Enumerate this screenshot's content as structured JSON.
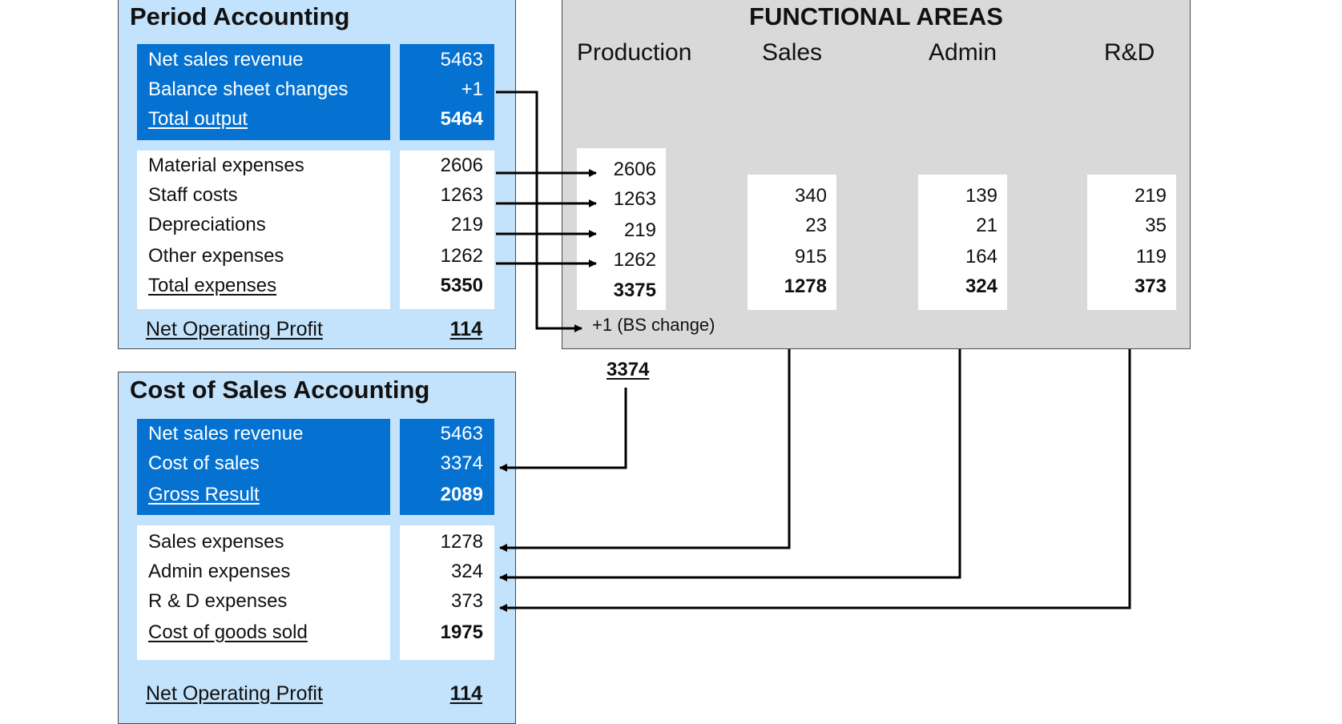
{
  "period_accounting": {
    "title": "Period Accounting",
    "output_rows": [
      {
        "label": "Net sales revenue",
        "value": "5463"
      },
      {
        "label": "Balance sheet changes",
        "value": "+1"
      },
      {
        "label": "Total output",
        "value": "5464"
      }
    ],
    "expense_rows": [
      {
        "label": "Material expenses",
        "value": "2606"
      },
      {
        "label": "Staff costs",
        "value": "1263"
      },
      {
        "label": "Depreciations",
        "value": "219"
      },
      {
        "label": "Other expenses",
        "value": "1262"
      },
      {
        "label": "Total expenses",
        "value": "5350"
      }
    ],
    "net_operating_profit": {
      "label": "Net Operating Profit",
      "value": "114"
    }
  },
  "functional_areas": {
    "title": "FUNCTIONAL AREAS",
    "headers": [
      "Production",
      "Sales",
      "Admin",
      "R&D"
    ],
    "production": [
      "2606",
      "1263",
      "219",
      "1262",
      "3375"
    ],
    "sales": [
      "340",
      "23",
      "915",
      "1278"
    ],
    "admin": [
      "139",
      "21",
      "164",
      "324"
    ],
    "rnd": [
      "219",
      "35",
      "119",
      "373"
    ],
    "bs_change": "+1 (BS change)",
    "production_total": "3374"
  },
  "cost_of_sales_accounting": {
    "title": "Cost of Sales Accounting",
    "gross_rows": [
      {
        "label": "Net sales revenue",
        "value": "5463"
      },
      {
        "label": "Cost of sales",
        "value": "3374"
      },
      {
        "label": "Gross Result",
        "value": "2089"
      }
    ],
    "expense_rows": [
      {
        "label": "Sales expenses",
        "value": "1278"
      },
      {
        "label": "Admin expenses",
        "value": "324"
      },
      {
        "label": "R & D expenses",
        "value": "373"
      },
      {
        "label": "Cost of goods sold",
        "value": "1975"
      }
    ],
    "net_operating_profit": {
      "label": "Net Operating Profit",
      "value": "114"
    }
  },
  "colors": {
    "panel_bg": "#c3e2fb",
    "highlight_blue": "#0572d2",
    "functional_bg": "#d9d9d9",
    "arrow": "#000000"
  }
}
